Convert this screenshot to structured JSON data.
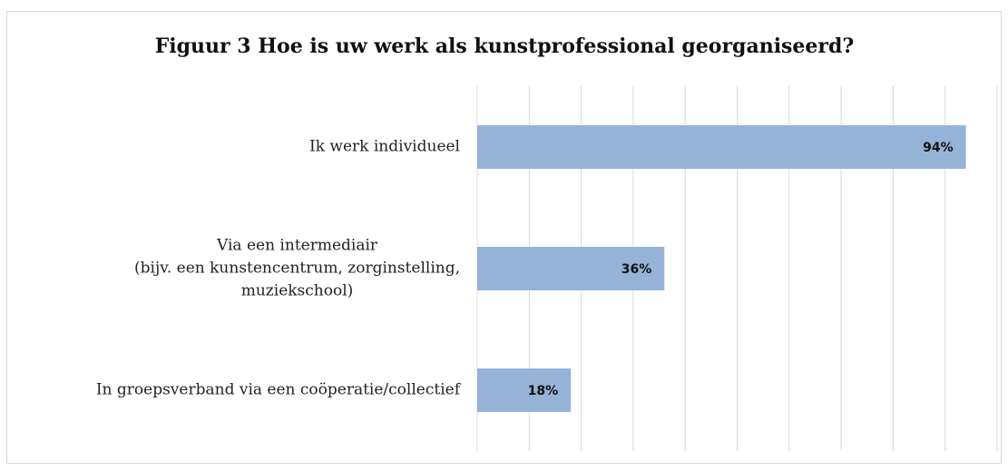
{
  "chart_data": {
    "type": "hbar",
    "title": "Figuur 3 Hoe is uw werk als kunstprofessional georganiseerd?",
    "categories": [
      "Ik werk individueel",
      "Via een intermediair\n(bijv. een kunstencentrum, zorginstelling,\nmuziekschool)",
      "In groepsverband via een coöperatie/collectief"
    ],
    "values": [
      94,
      36,
      18
    ],
    "value_labels": [
      "94%",
      "36%",
      "18%"
    ],
    "color": "#95b3d7",
    "xlim": [
      0,
      100
    ],
    "xticks": [
      0,
      10,
      20,
      30,
      40,
      50,
      60,
      70,
      80,
      90,
      100
    ],
    "grid": true
  }
}
